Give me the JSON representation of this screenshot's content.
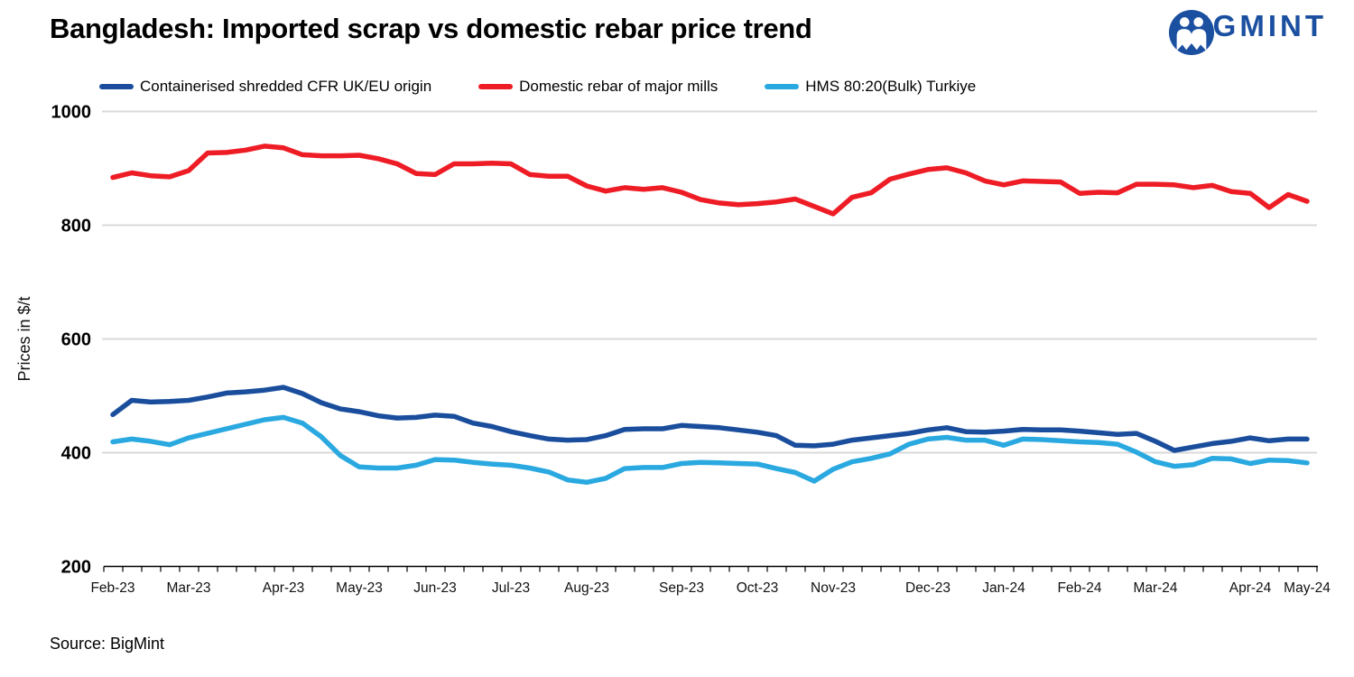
{
  "header": {
    "title": "Bangladesh: Imported scrap vs domestic rebar price trend",
    "logo_text": "BIGMINT",
    "logo_color": "#1b4fa0"
  },
  "legend": [
    {
      "label": "Containerised shredded CFR UK/EU origin",
      "color": "#1a4e9d"
    },
    {
      "label": "Domestic rebar of major mills",
      "color": "#ee1c25"
    },
    {
      "label": "HMS 80:20(Bulk) Turkiye",
      "color": "#2aa9e0"
    }
  ],
  "chart_data": {
    "type": "line",
    "title": "Bangladesh: Imported scrap vs domestic rebar price trend",
    "xlabel": "",
    "ylabel": "Prices in $/t",
    "ylim": [
      200,
      1000
    ],
    "yticks": [
      200,
      400,
      600,
      800,
      1000
    ],
    "grid": "horizontal",
    "grid_color": "#d9d9d9",
    "legend_position": "top",
    "x_labels": [
      "Feb-23",
      "Mar-23",
      "Apr-23",
      "May-23",
      "Jun-23",
      "Jul-23",
      "Aug-23",
      "Sep-23",
      "Oct-23",
      "Nov-23",
      "Dec-23",
      "Jan-24",
      "Feb-24",
      "Mar-24",
      "Apr-24",
      "May-24"
    ],
    "x_label_indices": [
      0,
      4,
      9,
      13,
      17,
      21,
      25,
      30,
      34,
      38,
      43,
      47,
      51,
      55,
      60,
      63
    ],
    "n_points": 64,
    "x_unit": "week",
    "series": [
      {
        "name": "Containerised shredded CFR UK/EU origin",
        "color": "#1a4e9d",
        "values": [
          467,
          492,
          489,
          490,
          492,
          498,
          505,
          507,
          510,
          515,
          504,
          488,
          477,
          472,
          465,
          461,
          462,
          466,
          464,
          452,
          446,
          437,
          430,
          424,
          422,
          423,
          430,
          441,
          442,
          442,
          448,
          446,
          444,
          440,
          436,
          430,
          413,
          412,
          415,
          422,
          426,
          430,
          434,
          440,
          444,
          437,
          436,
          438,
          441,
          440,
          440,
          438,
          435,
          432,
          434,
          420,
          404,
          410,
          416,
          420,
          426,
          421,
          424,
          424
        ]
      },
      {
        "name": "Domestic rebar of major mills",
        "color": "#ee1c25",
        "values": [
          884,
          892,
          887,
          885,
          896,
          927,
          928,
          932,
          939,
          936,
          924,
          922,
          922,
          923,
          917,
          908,
          891,
          889,
          908,
          908,
          909,
          908,
          889,
          886,
          886,
          869,
          860,
          866,
          863,
          866,
          858,
          845,
          839,
          836,
          838,
          841,
          846,
          833,
          820,
          849,
          857,
          881,
          890,
          898,
          901,
          892,
          878,
          871,
          878,
          877,
          876,
          856,
          858,
          857,
          872,
          872,
          871,
          866,
          870,
          859,
          856,
          831,
          854,
          842
        ]
      },
      {
        "name": "HMS 80:20(Bulk) Turkiye",
        "color": "#2aa9e0",
        "values": [
          419,
          424,
          420,
          414,
          426,
          434,
          442,
          450,
          458,
          462,
          452,
          428,
          395,
          375,
          373,
          373,
          378,
          388,
          387,
          383,
          380,
          378,
          373,
          366,
          352,
          348,
          355,
          372,
          374,
          374,
          381,
          383,
          382,
          381,
          380,
          372,
          365,
          350,
          371,
          384,
          390,
          398,
          415,
          424,
          427,
          422,
          422,
          413,
          424,
          423,
          421,
          419,
          418,
          415,
          401,
          384,
          376,
          379,
          390,
          389,
          381,
          387,
          386,
          382
        ]
      }
    ]
  },
  "footer": {
    "source": "Source: BigMint"
  }
}
